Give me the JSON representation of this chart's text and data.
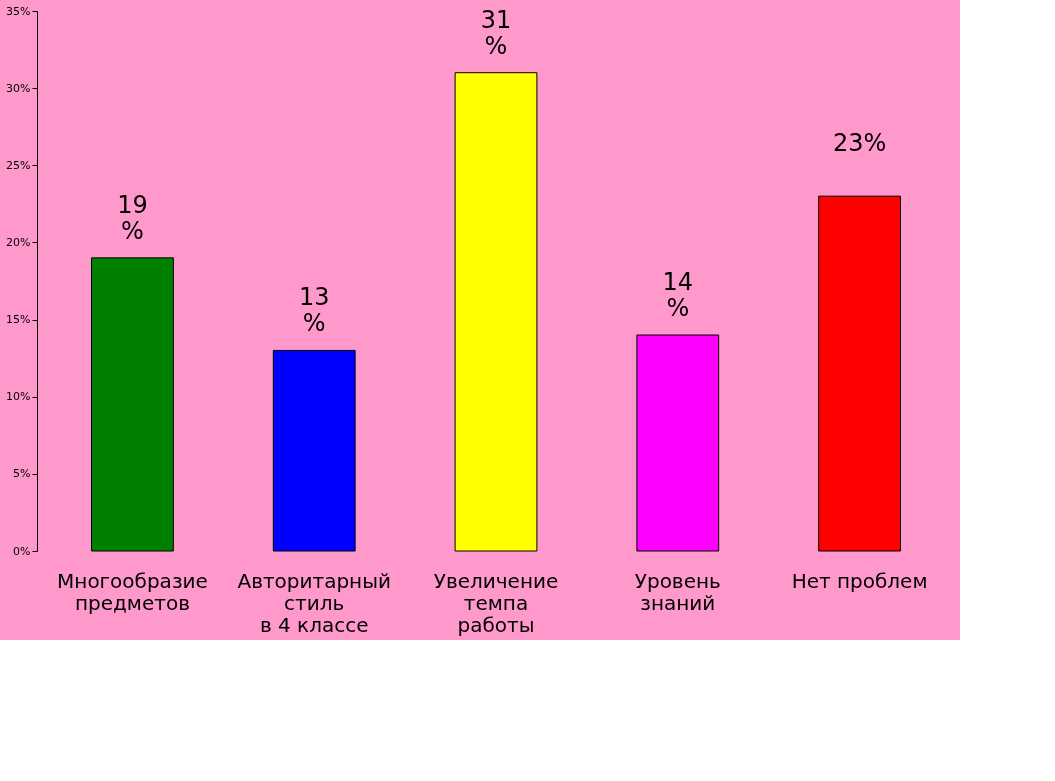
{
  "chart_data": {
    "type": "bar",
    "categories": [
      "Многообразие\nпредметов",
      "Авторитарный\nстиль\n в 4 классе",
      "Увеличение\nтемпа\nработы",
      "Уровень\nзнаний",
      "Нет проблем"
    ],
    "values": [
      19,
      13,
      31,
      14,
      23
    ],
    "colors": [
      "#008000",
      "#0000ff",
      "#ffff00",
      "#ff00ff",
      "#ff0000"
    ],
    "value_labels": [
      "19\n%",
      "13\n%",
      "31\n%",
      "14\n%",
      "23%"
    ],
    "ylim": [
      0,
      35
    ],
    "yticks": [
      {
        "value": 0,
        "label": "0%"
      },
      {
        "value": 5,
        "label": "5%"
      },
      {
        "value": 10,
        "label": "10%"
      },
      {
        "value": 15,
        "label": "15%"
      },
      {
        "value": 20,
        "label": "20%"
      },
      {
        "value": 25,
        "label": "25%"
      },
      {
        "value": 30,
        "label": "30%"
      },
      {
        "value": 35,
        "label": "35%"
      }
    ],
    "grid": false,
    "legend": false
  }
}
